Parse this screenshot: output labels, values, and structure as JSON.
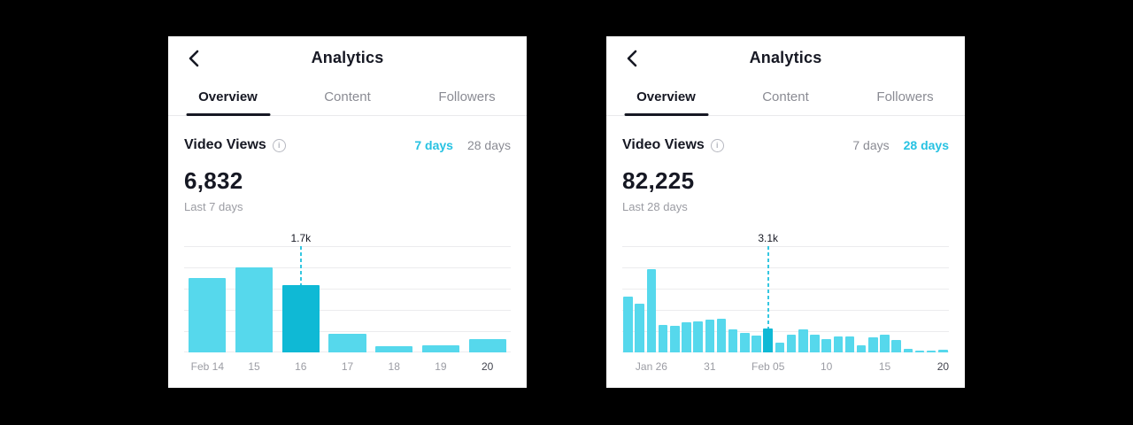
{
  "colors": {
    "accent_cyan": "#27c2e2",
    "bar": "#56d8ec",
    "bar_selected": "#0fb9d5",
    "dashed_line": "#35c7e1",
    "dark_text": "#161823",
    "gray_text": "#8a8b93",
    "gridline": "#ececee",
    "page_background": "#000000",
    "panel_background": "#ffffff"
  },
  "panels": [
    {
      "header": {
        "title": "Analytics"
      },
      "tabs": [
        {
          "label": "Overview",
          "active": true
        },
        {
          "label": "Content",
          "active": false
        },
        {
          "label": "Followers",
          "active": false
        }
      ],
      "section": {
        "title": "Video Views",
        "info_icon": "i",
        "periods": [
          {
            "label": "7 days",
            "active": true
          },
          {
            "label": "28 days",
            "active": false
          }
        ],
        "value": "6,832",
        "subtitle": "Last 7 days"
      }
    },
    {
      "header": {
        "title": "Analytics"
      },
      "tabs": [
        {
          "label": "Overview",
          "active": true
        },
        {
          "label": "Content",
          "active": false
        },
        {
          "label": "Followers",
          "active": false
        }
      ],
      "section": {
        "title": "Video Views",
        "info_icon": "i",
        "periods": [
          {
            "label": "7 days",
            "active": false
          },
          {
            "label": "28 days",
            "active": true
          }
        ],
        "value": "82,225",
        "subtitle": "Last 28 days"
      }
    }
  ],
  "chart_data": [
    {
      "type": "bar",
      "title": "Video Views",
      "period": "Last 7 days",
      "total": 6832,
      "categories": [
        "Feb 14",
        "Feb 15",
        "Feb 16",
        "Feb 17",
        "Feb 18",
        "Feb 19",
        "Feb 20"
      ],
      "values": [
        1900,
        2150,
        1700,
        480,
        150,
        190,
        330
      ],
      "selected_index": 2,
      "tooltip_label": "1.7k",
      "ylim": [
        0,
        2700
      ],
      "grid": true,
      "gridline_count": 6,
      "x_ticks": [
        {
          "index": 0,
          "label": "Feb 14",
          "emphasized": false
        },
        {
          "index": 1,
          "label": "15",
          "emphasized": false
        },
        {
          "index": 2,
          "label": "16",
          "emphasized": false
        },
        {
          "index": 3,
          "label": "17",
          "emphasized": false
        },
        {
          "index": 4,
          "label": "18",
          "emphasized": false
        },
        {
          "index": 5,
          "label": "19",
          "emphasized": false
        },
        {
          "index": 6,
          "label": "20",
          "emphasized": true
        }
      ]
    },
    {
      "type": "bar",
      "title": "Video Views",
      "period": "Last 28 days",
      "total": 82225,
      "categories": [
        "Jan 24",
        "Jan 25",
        "Jan 26",
        "Jan 27",
        "Jan 28",
        "Jan 29",
        "Jan 30",
        "Jan 31",
        "Feb 01",
        "Feb 02",
        "Feb 03",
        "Feb 04",
        "Feb 05",
        "Feb 06",
        "Feb 07",
        "Feb 08",
        "Feb 09",
        "Feb 10",
        "Feb 11",
        "Feb 12",
        "Feb 13",
        "Feb 14",
        "Feb 15",
        "Feb 16",
        "Feb 17",
        "Feb 18",
        "Feb 19",
        "Feb 20"
      ],
      "values": [
        7200,
        6300,
        10800,
        3600,
        3400,
        3900,
        4000,
        4300,
        4400,
        3000,
        2500,
        2200,
        3100,
        1300,
        2300,
        3000,
        2300,
        1700,
        2100,
        2100,
        900,
        1900,
        2300,
        1600,
        500,
        250,
        250,
        400
      ],
      "selected_index": 12,
      "tooltip_label": "3.1k",
      "ylim": [
        0,
        13800
      ],
      "grid": true,
      "gridline_count": 6,
      "x_ticks": [
        {
          "index": 2,
          "label": "Jan 26",
          "emphasized": false
        },
        {
          "index": 7,
          "label": "31",
          "emphasized": false
        },
        {
          "index": 12,
          "label": "Feb 05",
          "emphasized": false
        },
        {
          "index": 17,
          "label": "10",
          "emphasized": false
        },
        {
          "index": 22,
          "label": "15",
          "emphasized": false
        },
        {
          "index": 27,
          "label": "20",
          "emphasized": true
        }
      ]
    }
  ]
}
